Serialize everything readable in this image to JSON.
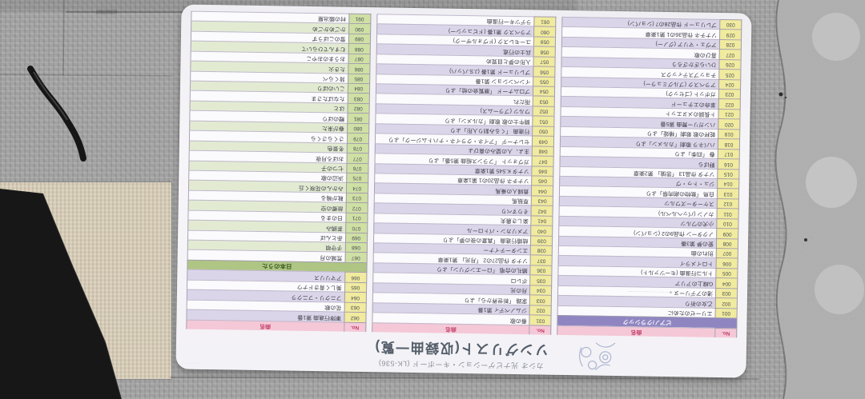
{
  "card": {
    "subtitle": "カシオ 光ナビゲーション・キーボード (LK-536)",
    "title": "ソングリスト(収録曲一覧)",
    "fine_print": "·······",
    "header": {
      "no": "No.",
      "title": "曲名"
    },
    "categories": {
      "classic": "ピアノ/クラシック",
      "nihon": "日本のうた"
    },
    "palette": {
      "header_bg": "#f5c8d7",
      "header_text": "#c2406a",
      "classic_band_bg": "#8f86c1",
      "nihon_band_bg": "#aec584",
      "classic_no_bg": "#f0eb9e",
      "nihon_no_bg": "#cfe0a4",
      "stripe_classic": "#dbd5e9",
      "stripe_nihon": "#e2ebd2"
    },
    "layout_columns": [
      [
        "HEAD",
        "BAND:classic",
        "S:1-30"
      ],
      [
        "HEAD",
        "S:31-61"
      ],
      [
        "HEAD",
        "S:62-66",
        "BAND:nihon",
        "S:67-91"
      ]
    ],
    "songs": [
      {
        "no": "001",
        "title": "エリーゼのために",
        "cat": "classic"
      },
      {
        "no": "002",
        "title": "乙女の祈り",
        "cat": "classic"
      },
      {
        "no": "003",
        "title": "渚のアデリーヌ",
        "cat": "classic",
        "note": "※··························"
      },
      {
        "no": "004",
        "title": "G線上のアリア",
        "cat": "classic"
      },
      {
        "no": "005",
        "title": "トルコ行進曲 (モーツァルト)",
        "cat": "classic"
      },
      {
        "no": "006",
        "title": "トロイメライ",
        "cat": "classic"
      },
      {
        "no": "007",
        "title": "別れの曲",
        "cat": "classic"
      },
      {
        "no": "008",
        "title": "愛の夢 第3番",
        "cat": "classic"
      },
      {
        "no": "009",
        "title": "ノクターン 作品9の2 (ショパン)",
        "cat": "classic"
      },
      {
        "no": "010",
        "title": "小犬のワルツ",
        "cat": "classic"
      },
      {
        "no": "011",
        "title": "カノン (パッヘルベル)",
        "cat": "classic"
      },
      {
        "no": "012",
        "title": "スケーターズワルツ",
        "cat": "classic"
      },
      {
        "no": "013",
        "title": "白鳥 「動物の謝肉祭」より",
        "cat": "classic"
      },
      {
        "no": "014",
        "title": "ジュ・トゥ・ヴ",
        "cat": "classic"
      },
      {
        "no": "015",
        "title": "ソナタ 作品13 「悲愴」 第2楽章",
        "cat": "classic"
      },
      {
        "no": "016",
        "title": "野ばら",
        "cat": "classic"
      },
      {
        "no": "017",
        "title": "春 「四季」より",
        "cat": "classic"
      },
      {
        "no": "018",
        "title": "ハバネラ 歌劇「カルメン」より",
        "cat": "classic"
      },
      {
        "no": "019",
        "title": "乾杯の歌 歌劇「椿姫」より",
        "cat": "classic"
      },
      {
        "no": "020",
        "title": "ハンガリー舞曲 第5番",
        "cat": "classic"
      },
      {
        "no": "021",
        "title": "ト長調のメヌエット",
        "cat": "classic"
      },
      {
        "no": "022",
        "title": "革命のエチュード",
        "cat": "classic"
      },
      {
        "no": "023",
        "title": "ガボット (ゴセック)",
        "cat": "classic"
      },
      {
        "no": "024",
        "title": "アラベスク (ブルグミュラー)",
        "cat": "classic"
      },
      {
        "no": "025",
        "title": "チョップスティックス",
        "cat": "classic"
      },
      {
        "no": "026",
        "title": "ひいらぎかざろう",
        "cat": "classic"
      },
      {
        "no": "027",
        "title": "喜びの歌",
        "cat": "classic"
      },
      {
        "no": "028",
        "title": "アヴェ・マリア (グノー)",
        "cat": "classic"
      },
      {
        "no": "029",
        "title": "ソナチネ 作品36の1 第1楽章",
        "cat": "classic"
      },
      {
        "no": "030",
        "title": "プレリュード 作品28の7 (ショパン)",
        "cat": "classic"
      },
      {
        "no": "031",
        "title": "春の歌",
        "cat": "classic"
      },
      {
        "no": "032",
        "title": "ジムノペディ 第1番",
        "cat": "classic"
      },
      {
        "no": "033",
        "title": "家路 「新世界から」より",
        "cat": "classic"
      },
      {
        "no": "034",
        "title": "月の光",
        "cat": "classic"
      },
      {
        "no": "035",
        "title": "ボレロ",
        "cat": "classic"
      },
      {
        "no": "036",
        "title": "婚礼の合唱 「ローエングリン」より",
        "cat": "classic"
      },
      {
        "no": "037",
        "title": "ソナタ 作品27の2 「月光」 第1楽章",
        "cat": "classic"
      },
      {
        "no": "038",
        "title": "エンターテイナー",
        "cat": "classic"
      },
      {
        "no": "039",
        "title": "結婚行進曲 「真夏の夜の夢」より",
        "cat": "classic"
      },
      {
        "no": "040",
        "title": "アメリカン・パトロール",
        "cat": "classic"
      },
      {
        "no": "041",
        "title": "楽しき農夫",
        "cat": "classic"
      },
      {
        "no": "042",
        "title": "そりすべり",
        "cat": "classic"
      },
      {
        "no": "043",
        "title": "草競馬",
        "cat": "classic"
      },
      {
        "no": "044",
        "title": "貴婦人の乗馬",
        "cat": "classic"
      },
      {
        "no": "045",
        "title": "ソナチネ 作品20の1 第1楽章",
        "cat": "classic"
      },
      {
        "no": "046",
        "title": "ソナタ K.545 第1楽章",
        "cat": "classic"
      },
      {
        "no": "047",
        "title": "ガヴォット 「フランス組曲 第5番」より",
        "cat": "classic"
      },
      {
        "no": "048",
        "title": "主よ、人の望みの喜びよ",
        "cat": "classic"
      },
      {
        "no": "049",
        "title": "セレナーデ 「アイネ・クライネ・ナハトムジーク」より",
        "cat": "classic"
      },
      {
        "no": "050",
        "title": "行進曲 「くるみ割り人形」より",
        "cat": "classic"
      },
      {
        "no": "051",
        "title": "闘牛士の歌 歌劇「カルメン」より",
        "cat": "classic"
      },
      {
        "no": "052",
        "title": "ワルツ (ブラームス)",
        "cat": "classic"
      },
      {
        "no": "053",
        "title": "雨だれ",
        "cat": "classic"
      },
      {
        "no": "054",
        "title": "プロムナード 「展覧会の絵」より",
        "cat": "classic"
      },
      {
        "no": "055",
        "title": "インベンション 第1番",
        "cat": "classic"
      },
      {
        "no": "056",
        "title": "プレリュード 第1番 (J.S.バッハ)",
        "cat": "classic"
      },
      {
        "no": "057",
        "title": "人形の夢と目覚め",
        "cat": "classic"
      },
      {
        "no": "058",
        "title": "兵士の行進",
        "cat": "classic"
      },
      {
        "no": "059",
        "title": "ユーモレスク (ドヴォルザーク)",
        "cat": "classic"
      },
      {
        "no": "060",
        "title": "アラベスク 第1番 (ドビュッシー)",
        "cat": "classic"
      },
      {
        "no": "061",
        "title": "ラデツキー行進曲",
        "cat": "classic"
      },
      {
        "no": "062",
        "title": "軍隊行進曲 第1番",
        "cat": "classic"
      },
      {
        "no": "063",
        "title": "花の歌",
        "cat": "classic"
      },
      {
        "no": "064",
        "title": "フニクリ・フニクラ",
        "cat": "classic"
      },
      {
        "no": "065",
        "title": "美しく青きドナウ",
        "cat": "classic"
      },
      {
        "no": "066",
        "title": "アマリリス",
        "cat": "classic"
      },
      {
        "no": "067",
        "title": "荒城の月",
        "cat": "nihon"
      },
      {
        "no": "068",
        "title": "子守唄",
        "cat": "nihon"
      },
      {
        "no": "069",
        "title": "赤とんぼ",
        "cat": "nihon"
      },
      {
        "no": "070",
        "title": "茶摘み",
        "cat": "nihon"
      },
      {
        "no": "071",
        "title": "日のまる",
        "cat": "nihon"
      },
      {
        "no": "072",
        "title": "故郷の空",
        "cat": "nihon"
      },
      {
        "no": "073",
        "title": "靴が鳴る",
        "cat": "nihon"
      },
      {
        "no": "074",
        "title": "みかんの花咲く丘",
        "cat": "nihon"
      },
      {
        "no": "075",
        "title": "浜辺の歌",
        "cat": "nihon"
      },
      {
        "no": "076",
        "title": "七つの子",
        "cat": "nihon"
      },
      {
        "no": "077",
        "title": "おぼろ月夜",
        "cat": "nihon"
      },
      {
        "no": "078",
        "title": "冬景色",
        "cat": "nihon"
      },
      {
        "no": "079",
        "title": "さくらさくら",
        "cat": "nihon"
      },
      {
        "no": "080",
        "title": "春が来た",
        "cat": "nihon"
      },
      {
        "no": "081",
        "title": "鯉のぼり",
        "cat": "nihon"
      },
      {
        "no": "082",
        "title": "はと",
        "cat": "nihon"
      },
      {
        "no": "083",
        "title": "たなばたさま",
        "cat": "nihon"
      },
      {
        "no": "084",
        "title": "こいのぼり",
        "cat": "nihon"
      },
      {
        "no": "085",
        "title": "背くらべ",
        "cat": "nihon"
      },
      {
        "no": "086",
        "title": "たき火",
        "cat": "nihon"
      },
      {
        "no": "087",
        "title": "おうまのおやこ",
        "cat": "nihon"
      },
      {
        "no": "088",
        "title": "むすんでひらいて",
        "cat": "nihon"
      },
      {
        "no": "089",
        "title": "雪のこぼうず",
        "cat": "nihon"
      },
      {
        "no": "090",
        "title": "かごめかごめ",
        "cat": "nihon"
      },
      {
        "no": "091",
        "title": "村の鍛冶屋",
        "cat": "nihon"
      }
    ]
  }
}
